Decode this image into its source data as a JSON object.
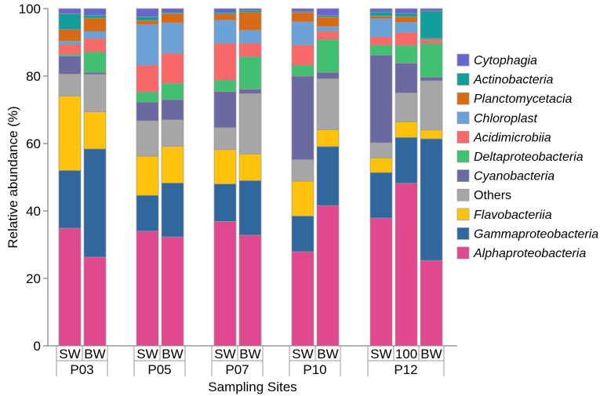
{
  "chart_data": {
    "type": "bar",
    "stacked": true,
    "xlabel": "Sampling Sites",
    "ylabel": "Relative abundance (%)",
    "ylim": [
      0,
      100
    ],
    "yticks": [
      0,
      20,
      40,
      60,
      80,
      100
    ],
    "grid": false,
    "legend_position": "right",
    "groups": [
      {
        "name": "P03",
        "bars": [
          "SW",
          "BW"
        ]
      },
      {
        "name": "P05",
        "bars": [
          "SW",
          "BW"
        ]
      },
      {
        "name": "P07",
        "bars": [
          "SW",
          "BW"
        ]
      },
      {
        "name": "P10",
        "bars": [
          "SW",
          "BW"
        ]
      },
      {
        "name": "P12",
        "bars": [
          "SW",
          "100",
          "BW"
        ]
      }
    ],
    "categories": [
      "P03 SW",
      "P03 BW",
      "P05 SW",
      "P05 BW",
      "P07 SW",
      "P07 BW",
      "P10 SW",
      "P10 BW",
      "P12 SW",
      "P12 100",
      "P12 BW"
    ],
    "series": [
      {
        "name": "Alphaproteobacteria",
        "italic": true,
        "color": "#e0488f",
        "values": [
          34.9,
          26.3,
          34.0,
          32.3,
          36.9,
          32.8,
          27.9,
          41.6,
          37.9,
          48.2,
          25.3
        ]
      },
      {
        "name": "Gammaproteobacteria",
        "italic": true,
        "color": "#30679f",
        "values": [
          17.1,
          32.1,
          10.6,
          16.0,
          11.1,
          16.2,
          10.6,
          17.5,
          13.5,
          13.6,
          36.1
        ]
      },
      {
        "name": "Flavobacteriia",
        "italic": true,
        "color": "#ffc20a",
        "values": [
          22.1,
          11.0,
          11.6,
          10.9,
          10.2,
          7.9,
          10.3,
          5.0,
          4.3,
          4.6,
          2.6
        ]
      },
      {
        "name": "Others",
        "italic": false,
        "color": "#a6a6a6",
        "values": [
          6.5,
          11.1,
          10.5,
          7.8,
          6.5,
          17.9,
          6.4,
          15.1,
          4.5,
          8.6,
          14.6
        ]
      },
      {
        "name": "Cyanobacteria",
        "italic": true,
        "color": "#6a6aa0",
        "values": [
          5.3,
          0.6,
          5.6,
          6.0,
          10.7,
          1.3,
          24.8,
          1.9,
          26.0,
          8.8,
          1.1
        ]
      },
      {
        "name": "Deltaproteobacteria",
        "italic": true,
        "color": "#40c070",
        "values": [
          0.5,
          6.0,
          3.0,
          4.8,
          3.4,
          9.6,
          3.2,
          9.7,
          3.0,
          5.3,
          9.8
        ]
      },
      {
        "name": "Acidimicrobiia",
        "italic": true,
        "color": "#f86a6a",
        "values": [
          3.0,
          4.0,
          7.9,
          8.9,
          10.8,
          3.9,
          6.0,
          2.4,
          2.3,
          3.8,
          1.0
        ]
      },
      {
        "name": "Chloroplast",
        "italic": true,
        "color": "#6ca2d8",
        "values": [
          1.0,
          2.1,
          12.1,
          9.1,
          7.0,
          4.0,
          6.9,
          1.5,
          5.5,
          3.1,
          0.3
        ]
      },
      {
        "name": "Planctomycetacia",
        "italic": true,
        "color": "#d96a15",
        "values": [
          3.4,
          4.0,
          1.2,
          2.7,
          1.8,
          5.3,
          2.7,
          2.8,
          0.8,
          1.6,
          0.4
        ]
      },
      {
        "name": "Actinobacteria",
        "italic": true,
        "color": "#129c9a",
        "values": [
          4.7,
          0.8,
          1.1,
          0.3,
          0.4,
          0.5,
          0.3,
          0.5,
          1.2,
          1.0,
          8.1
        ]
      },
      {
        "name": "Cytophagia",
        "italic": true,
        "color": "#6666cc",
        "values": [
          1.5,
          2.0,
          2.4,
          1.2,
          1.2,
          0.6,
          0.9,
          2.0,
          1.0,
          1.4,
          0.7
        ]
      }
    ]
  }
}
